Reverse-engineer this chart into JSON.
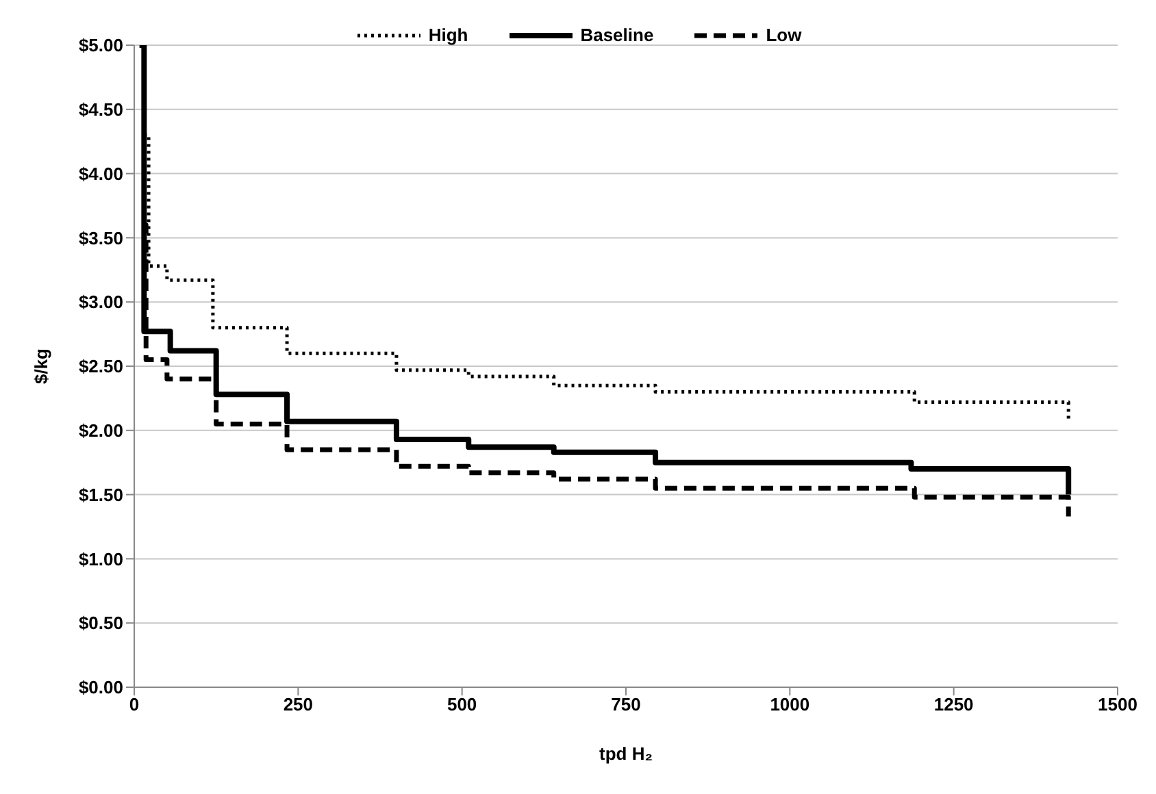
{
  "chart_data": {
    "type": "step",
    "xlabel": "tpd H₂",
    "ylabel": "$/kg",
    "xlim": [
      0,
      1500
    ],
    "xticks": [
      0,
      250,
      500,
      750,
      1000,
      1250,
      1500
    ],
    "ylim": [
      0,
      5
    ],
    "yticks": [
      {
        "value": 0,
        "label": "$0.00"
      },
      {
        "value": 0.5,
        "label": "$0.50"
      },
      {
        "value": 1,
        "label": "$1.00"
      },
      {
        "value": 1.5,
        "label": "$1.50"
      },
      {
        "value": 2,
        "label": "$2.00"
      },
      {
        "value": 2.5,
        "label": "$2.50"
      },
      {
        "value": 3,
        "label": "$3.00"
      },
      {
        "value": 3.5,
        "label": "$3.50"
      },
      {
        "value": 4,
        "label": "$4.00"
      },
      {
        "value": 4.5,
        "label": "$4.50"
      },
      {
        "value": 5,
        "label": "$5.00"
      }
    ],
    "grid": "y",
    "legend": "top",
    "series": [
      {
        "name": "High",
        "color": "#000000",
        "line_style": "dotted",
        "x": [
          15,
          22,
          50,
          120,
          233,
          400,
          510,
          640,
          795,
          1190,
          1425
        ],
        "values": [
          4.3,
          3.28,
          3.17,
          2.8,
          2.6,
          2.47,
          2.42,
          2.35,
          2.3,
          2.22,
          2.08
        ]
      },
      {
        "name": "Baseline",
        "color": "#000000",
        "line_style": "solid",
        "x": [
          8,
          15,
          55,
          125,
          233,
          400,
          510,
          640,
          795,
          1185,
          1425
        ],
        "values": [
          5.0,
          2.77,
          2.62,
          2.28,
          2.07,
          1.93,
          1.87,
          1.83,
          1.75,
          1.7,
          1.5
        ]
      },
      {
        "name": "Low",
        "color": "#000000",
        "line_style": "dashed",
        "x": [
          12,
          18,
          50,
          125,
          233,
          400,
          510,
          640,
          795,
          1190,
          1425
        ],
        "values": [
          3.6,
          2.55,
          2.4,
          2.05,
          1.85,
          1.72,
          1.67,
          1.62,
          1.55,
          1.48,
          1.33
        ]
      }
    ]
  }
}
